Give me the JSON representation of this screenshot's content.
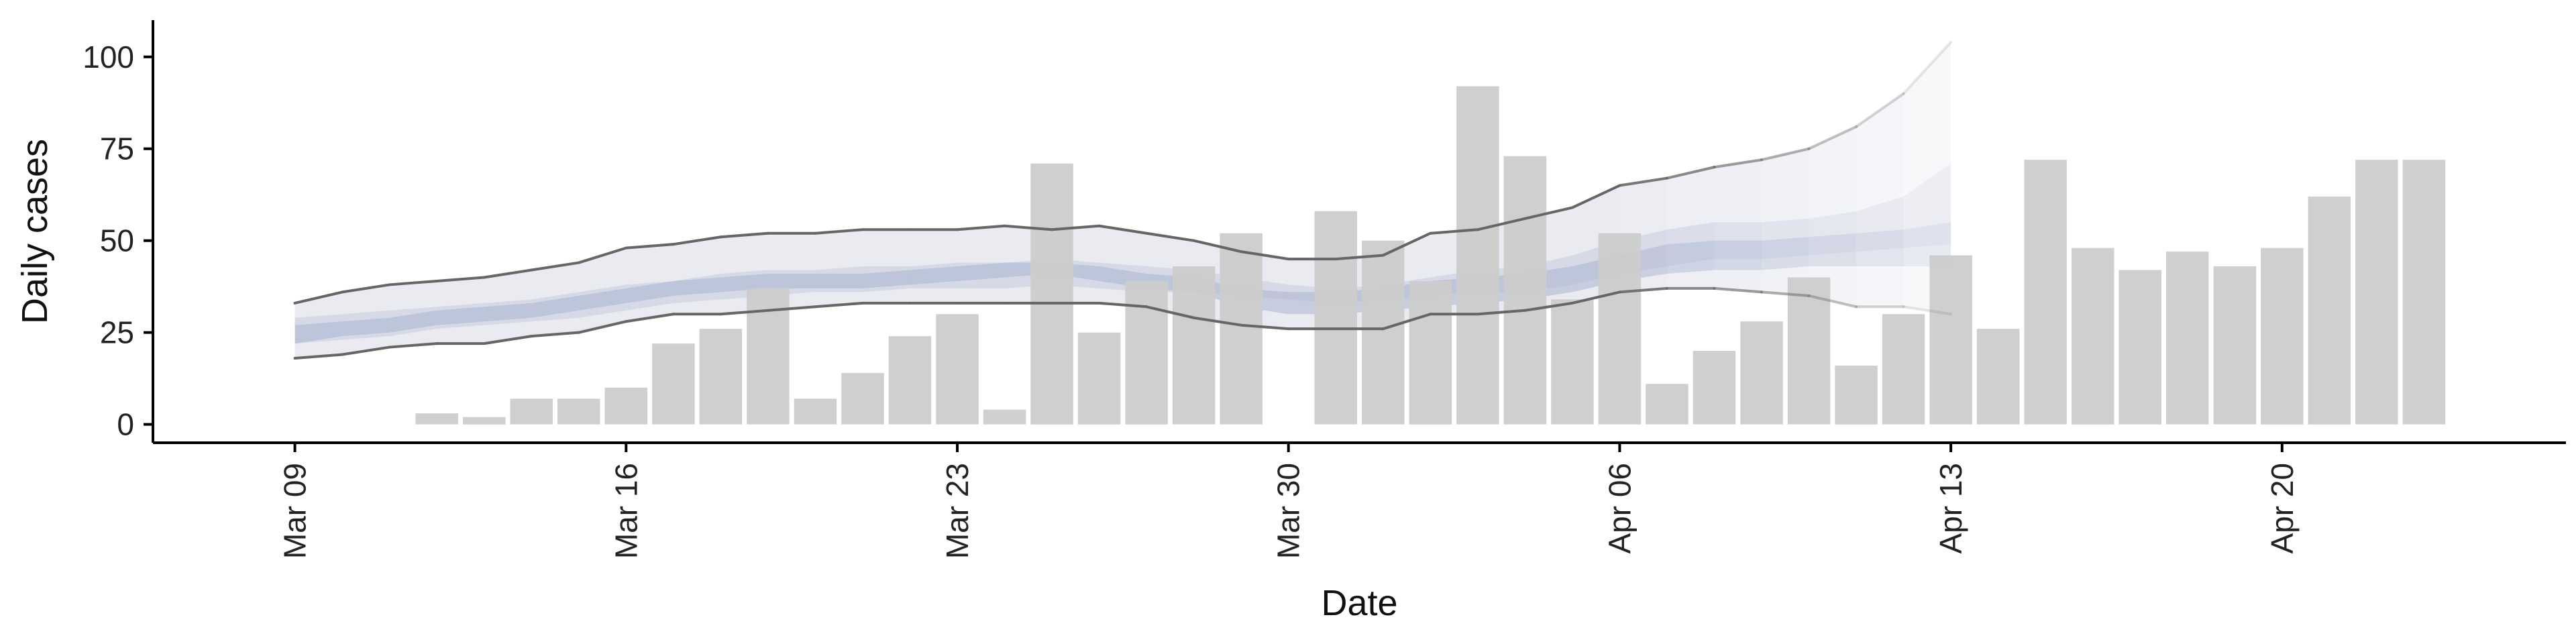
{
  "chart_data": {
    "type": "bar",
    "xlabel": "Date",
    "ylabel": "Daily cases",
    "ylim": [
      -5,
      110
    ],
    "yticks": [
      0,
      25,
      50,
      75,
      100
    ],
    "xlim": [
      "2020-03-06",
      "2020-04-26"
    ],
    "xticks": [
      {
        "date": "2020-03-09",
        "label": "Mar 09"
      },
      {
        "date": "2020-03-16",
        "label": "Mar 16"
      },
      {
        "date": "2020-03-23",
        "label": "Mar 23"
      },
      {
        "date": "2020-03-30",
        "label": "Mar 30"
      },
      {
        "date": "2020-04-06",
        "label": "Apr 06"
      },
      {
        "date": "2020-04-13",
        "label": "Apr 13"
      },
      {
        "date": "2020-04-20",
        "label": "Apr 20"
      }
    ],
    "grid": false,
    "bar_color": "#cccccc",
    "bars": {
      "dates": [
        "2020-03-12",
        "2020-03-13",
        "2020-03-14",
        "2020-03-15",
        "2020-03-16",
        "2020-03-17",
        "2020-03-18",
        "2020-03-19",
        "2020-03-20",
        "2020-03-21",
        "2020-03-22",
        "2020-03-23",
        "2020-03-24",
        "2020-03-25",
        "2020-03-26",
        "2020-03-27",
        "2020-03-28",
        "2020-03-29",
        "2020-03-31",
        "2020-04-01",
        "2020-04-02",
        "2020-04-03",
        "2020-04-04",
        "2020-04-05",
        "2020-04-06",
        "2020-04-07",
        "2020-04-08",
        "2020-04-09",
        "2020-04-10",
        "2020-04-11",
        "2020-04-12",
        "2020-04-13",
        "2020-04-14",
        "2020-04-15",
        "2020-04-16",
        "2020-04-17",
        "2020-04-18",
        "2020-04-19",
        "2020-04-20",
        "2020-04-21",
        "2020-04-22",
        "2020-04-23"
      ],
      "values": [
        3,
        2,
        7,
        7,
        10,
        22,
        26,
        37,
        7,
        14,
        24,
        30,
        4,
        71,
        25,
        39,
        43,
        52,
        58,
        50,
        39,
        92,
        73,
        34,
        52,
        11,
        20,
        28,
        40,
        16,
        30,
        46,
        26,
        72,
        48,
        42,
        47,
        43,
        48,
        62,
        72,
        72
      ]
    },
    "estimate": {
      "dates": [
        "2020-03-09",
        "2020-03-10",
        "2020-03-11",
        "2020-03-12",
        "2020-03-13",
        "2020-03-14",
        "2020-03-15",
        "2020-03-16",
        "2020-03-17",
        "2020-03-18",
        "2020-03-19",
        "2020-03-20",
        "2020-03-21",
        "2020-03-22",
        "2020-03-23",
        "2020-03-24",
        "2020-03-25",
        "2020-03-26",
        "2020-03-27",
        "2020-03-28",
        "2020-03-29",
        "2020-03-30",
        "2020-03-31",
        "2020-04-01",
        "2020-04-02",
        "2020-04-03",
        "2020-04-04",
        "2020-04-05",
        "2020-04-06",
        "2020-04-07",
        "2020-04-08",
        "2020-04-09",
        "2020-04-10",
        "2020-04-11",
        "2020-04-12",
        "2020-04-13"
      ],
      "lower_90": [
        18,
        19,
        21,
        22,
        22,
        24,
        25,
        28,
        30,
        30,
        31,
        32,
        33,
        33,
        33,
        33,
        33,
        33,
        32,
        29,
        27,
        26,
        26,
        26,
        30,
        30,
        31,
        33,
        36,
        37,
        37,
        36,
        35,
        32,
        32,
        30
      ],
      "upper_90": [
        33,
        36,
        38,
        39,
        40,
        42,
        44,
        48,
        49,
        51,
        52,
        52,
        53,
        53,
        53,
        54,
        53,
        54,
        52,
        50,
        47,
        45,
        45,
        46,
        52,
        53,
        56,
        59,
        65,
        67,
        70,
        72,
        75,
        81,
        90,
        104
      ],
      "lower_50": [
        22,
        23,
        24,
        26,
        27,
        28,
        29,
        31,
        33,
        34,
        35,
        36,
        36,
        37,
        37,
        37,
        38,
        37,
        36,
        36,
        35,
        34,
        33,
        34,
        35,
        36,
        36,
        38,
        41,
        43,
        45,
        45,
        46,
        47,
        48,
        49
      ],
      "upper_50": [
        29,
        30,
        31,
        32,
        33,
        34,
        36,
        38,
        39,
        41,
        42,
        42,
        43,
        43,
        44,
        44,
        45,
        44,
        43,
        42,
        40,
        38,
        37,
        38,
        40,
        42,
        43,
        46,
        50,
        53,
        55,
        55,
        56,
        58,
        62,
        71
      ],
      "lower_20": [
        22,
        24,
        25,
        27,
        28,
        29,
        31,
        33,
        35,
        36,
        37,
        37,
        37,
        38,
        39,
        40,
        41,
        39,
        37,
        36,
        32,
        30,
        30,
        31,
        32,
        33,
        34,
        36,
        39,
        41,
        42,
        42,
        43,
        43,
        43,
        43
      ],
      "upper_20": [
        27,
        28,
        29,
        31,
        32,
        33,
        35,
        37,
        39,
        40,
        41,
        41,
        41,
        42,
        43,
        44,
        44,
        43,
        41,
        40,
        37,
        36,
        36,
        37,
        39,
        40,
        41,
        43,
        46,
        49,
        50,
        50,
        51,
        52,
        53,
        55
      ],
      "band_90_color": "#d8dbe6",
      "band_50_color": "#c8cde0",
      "band_20_color": "#aab4d0"
    }
  }
}
